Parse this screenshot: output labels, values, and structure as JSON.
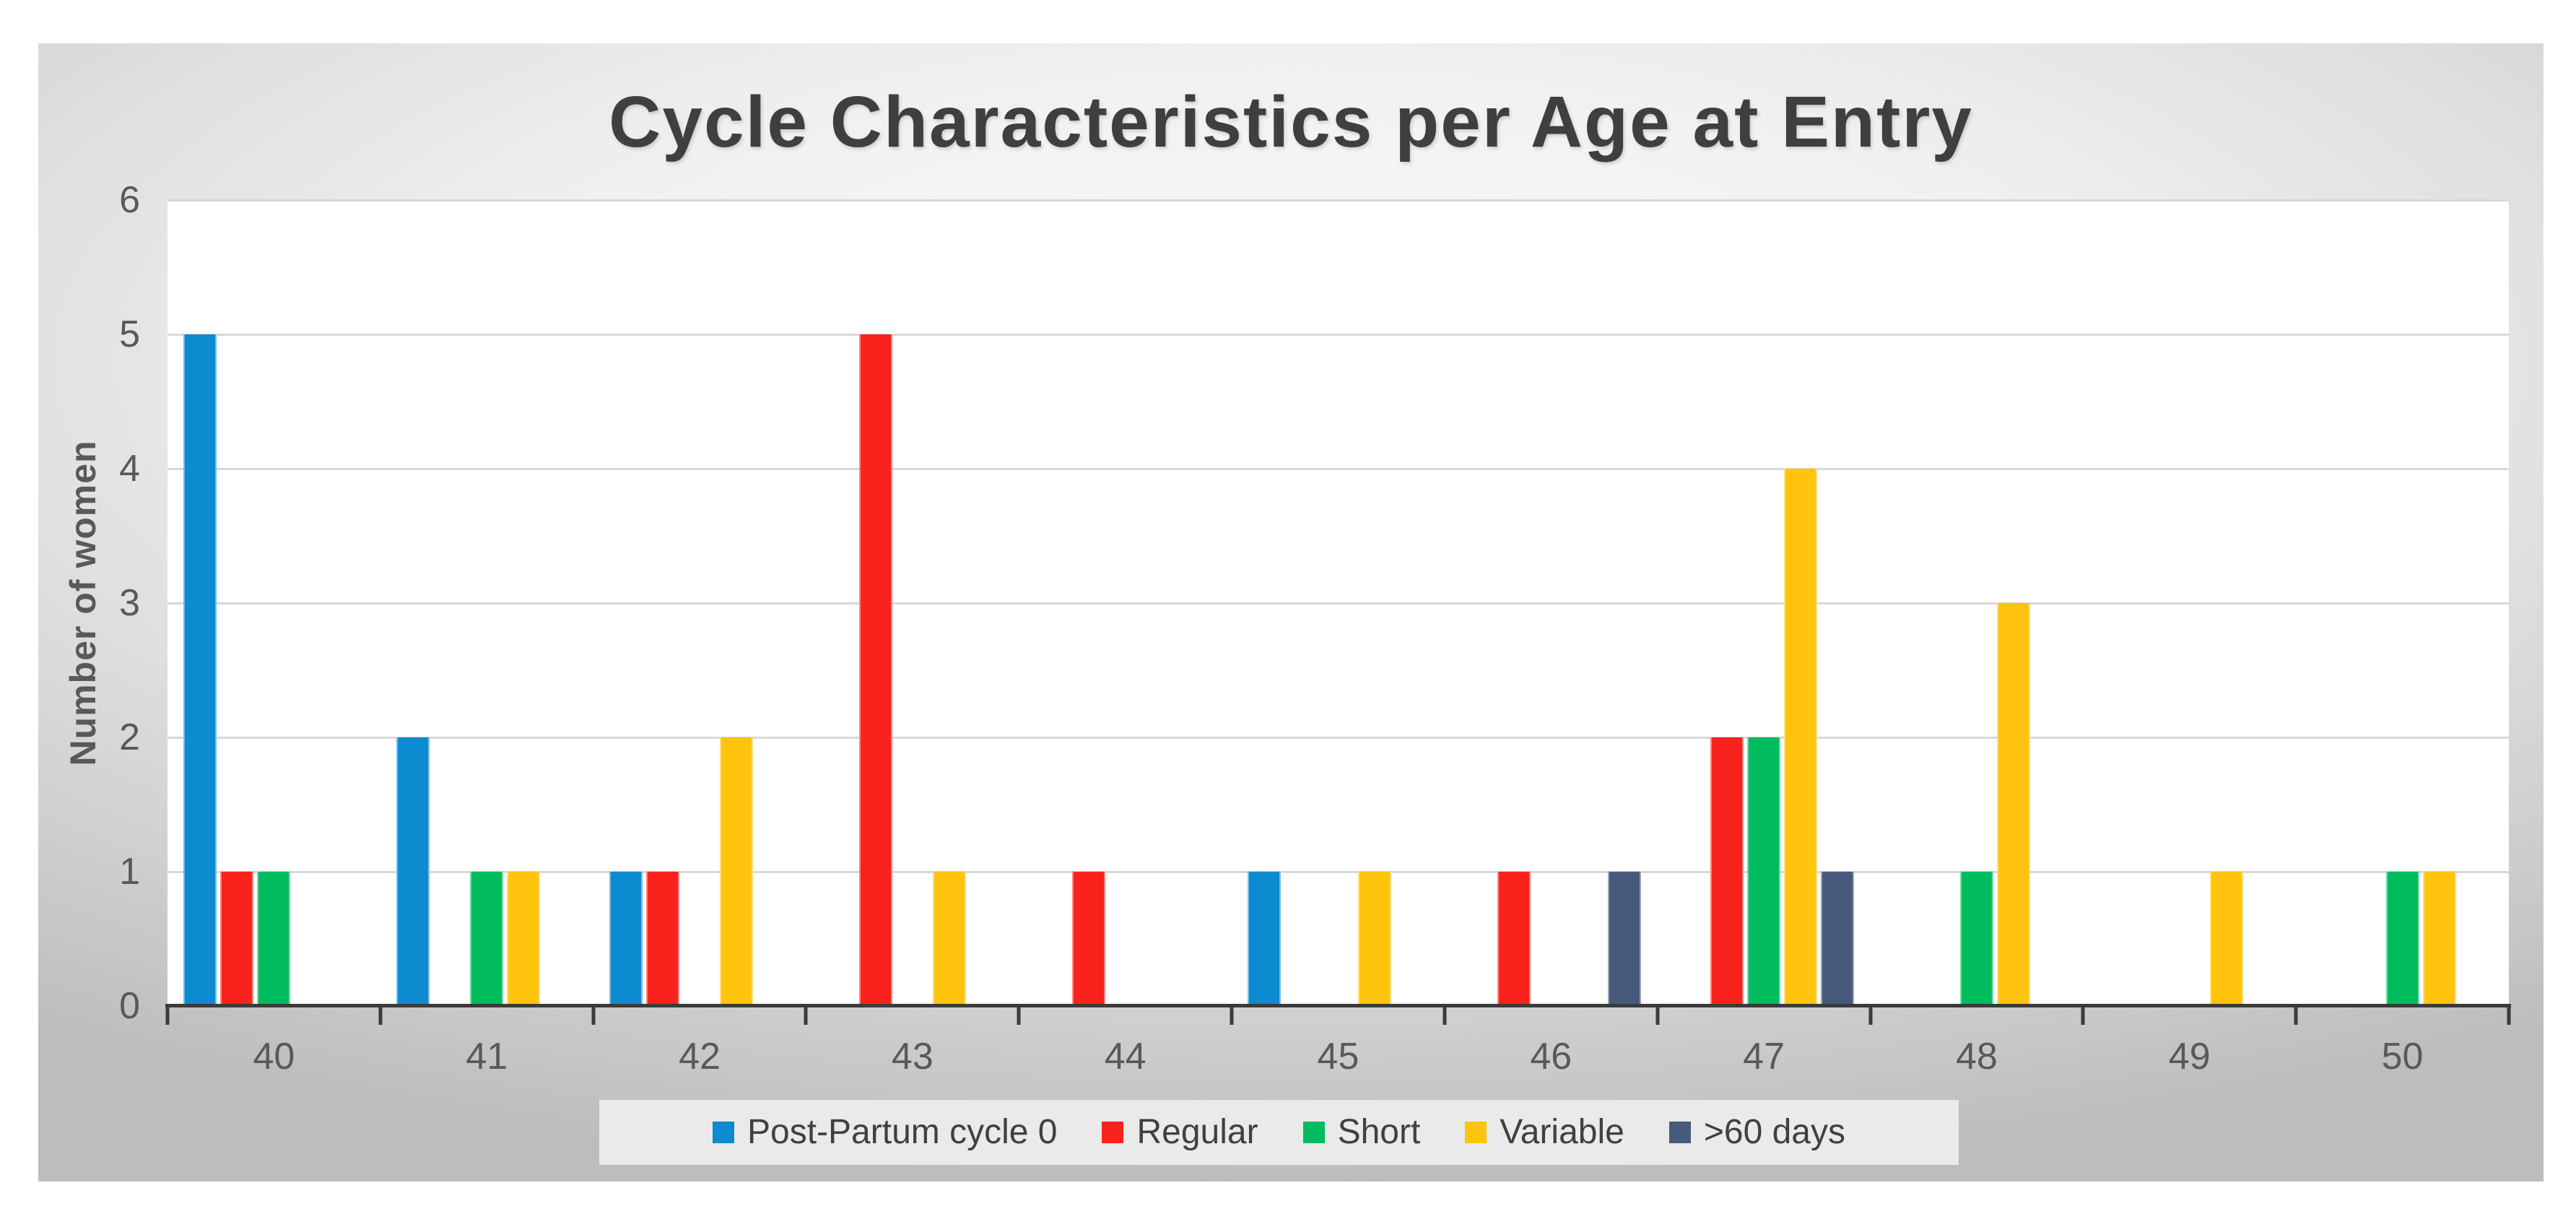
{
  "title": "Cycle Characteristics per Age at Entry",
  "y_axis": {
    "label": "Number of women"
  },
  "colors": {
    "title_color": "#3f3f3f",
    "tick_color": "#595959",
    "gridline_color": "#d8d8d8",
    "axis_color": "#3b3b3b",
    "plot_bg": "#ffffff",
    "legend_bg": "#eaeaea",
    "legend_text": "#404040"
  },
  "chart_data": {
    "type": "bar",
    "title": "Cycle Characteristics per Age at Entry",
    "categories": [
      "40",
      "41",
      "42",
      "43",
      "44",
      "45",
      "46",
      "47",
      "48",
      "49",
      "50"
    ],
    "series": [
      {
        "name": "Post-Partum cycle 0",
        "color": "#0c8bd0",
        "values": [
          5,
          2,
          1,
          0,
          0,
          1,
          0,
          0,
          0,
          0,
          0
        ]
      },
      {
        "name": "Regular",
        "color": "#f9221d",
        "values": [
          1,
          0,
          1,
          5,
          1,
          0,
          1,
          2,
          0,
          0,
          0
        ]
      },
      {
        "name": "Short",
        "color": "#00bc5f",
        "values": [
          1,
          1,
          0,
          0,
          0,
          0,
          0,
          2,
          1,
          0,
          1
        ]
      },
      {
        "name": "Variable",
        "color": "#ffc40d",
        "values": [
          0,
          1,
          2,
          1,
          0,
          1,
          0,
          4,
          3,
          1,
          1
        ]
      },
      {
        "name": ">60 days",
        "color": "#475a7d",
        "values": [
          0,
          0,
          0,
          0,
          0,
          0,
          1,
          1,
          0,
          0,
          0
        ]
      }
    ],
    "xlabel": "",
    "ylabel": "Number of women",
    "ylim": [
      0,
      6
    ],
    "y_ticks": [
      0,
      1,
      2,
      3,
      4,
      5,
      6
    ],
    "grid": true,
    "legend_position": "bottom"
  }
}
